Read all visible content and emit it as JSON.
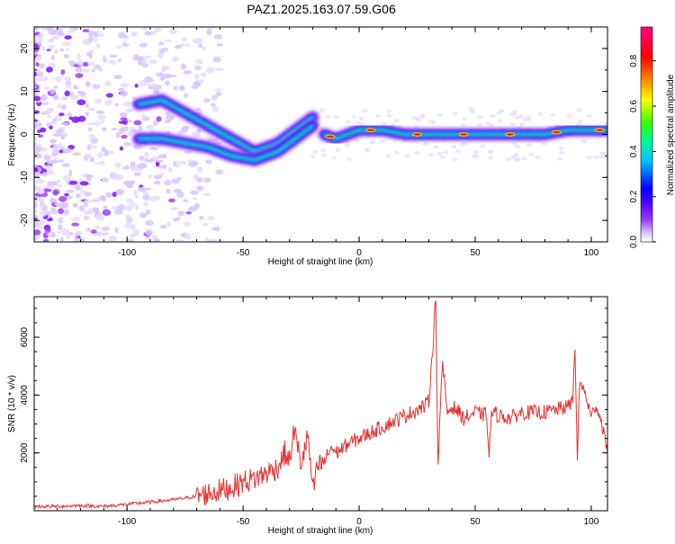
{
  "title": "PAZ1.2025.163.07.59.G06",
  "chart_data": [
    {
      "type": "heatmap",
      "xlabel": "Height of straight line (km)",
      "ylabel": "Frequency (Hz)",
      "xlim": [
        -140,
        107
      ],
      "ylim": [
        -25,
        25
      ],
      "xticks": [
        -100,
        -50,
        0,
        50,
        100
      ],
      "yticks": [
        -20,
        -10,
        0,
        10,
        20
      ],
      "colorbar": {
        "label": "Normalized spectral amplitude",
        "range": [
          0,
          0.95
        ],
        "ticks": [
          0.0,
          0.2,
          0.4,
          0.6,
          0.8
        ],
        "colors": [
          "#ffffff",
          "#e8d8ff",
          "#b070ff",
          "#7a00ff",
          "#0000ff",
          "#00c8ff",
          "#00ff80",
          "#80ff00",
          "#ffff00",
          "#ff8000",
          "#ff0000",
          "#ff0080"
        ]
      },
      "ridge": {
        "upper_branch": [
          [
            -95,
            7
          ],
          [
            -85,
            8
          ],
          [
            -75,
            5
          ],
          [
            -65,
            2
          ],
          [
            -55,
            -1
          ],
          [
            -45,
            -4
          ],
          [
            -35,
            -2
          ],
          [
            -25,
            2
          ],
          [
            -20,
            4
          ]
        ],
        "lower_branch": [
          [
            -95,
            -1
          ],
          [
            -85,
            -1
          ],
          [
            -75,
            -2
          ],
          [
            -65,
            -3
          ],
          [
            -55,
            -5
          ],
          [
            -45,
            -6
          ],
          [
            -35,
            -4
          ],
          [
            -25,
            0
          ],
          [
            -20,
            2
          ]
        ],
        "main_line": [
          [
            -15,
            0
          ],
          [
            -10,
            -1
          ],
          [
            0,
            1
          ],
          [
            10,
            1
          ],
          [
            20,
            0
          ],
          [
            30,
            0
          ],
          [
            40,
            0
          ],
          [
            50,
            0
          ],
          [
            60,
            0
          ],
          [
            70,
            0
          ],
          [
            80,
            0
          ],
          [
            90,
            1
          ],
          [
            100,
            1
          ],
          [
            107,
            1
          ]
        ]
      }
    },
    {
      "type": "line",
      "xlabel": "Height of straight line (km)",
      "ylabel": "SNR (10 * v/v)",
      "xlim": [
        -140,
        107
      ],
      "ylim": [
        0,
        7400
      ],
      "xticks": [
        -100,
        -50,
        0,
        50,
        100
      ],
      "yticks": [
        2000,
        4000,
        6000
      ],
      "line_color": "#e83030",
      "series": [
        {
          "x": [
            -140,
            -130,
            -120,
            -110,
            -100,
            -90,
            -80,
            -70,
            -60,
            -55,
            -50,
            -45,
            -40,
            -35,
            -32,
            -30,
            -28,
            -25,
            -22,
            -20,
            -18,
            -15,
            -12,
            -10,
            -5,
            0,
            5,
            10,
            15,
            20,
            25,
            28,
            30,
            32,
            33,
            34,
            35,
            36,
            38,
            40,
            42,
            45,
            48,
            50,
            55,
            56,
            57,
            60,
            65,
            70,
            75,
            80,
            85,
            90,
            92,
            93,
            94,
            95,
            98,
            100,
            102,
            105,
            107
          ],
          "y": [
            150,
            150,
            180,
            150,
            220,
            300,
            380,
            500,
            700,
            800,
            1000,
            1100,
            1300,
            1500,
            2000,
            1700,
            2800,
            1600,
            2600,
            600,
            1500,
            1700,
            2200,
            2000,
            2300,
            2500,
            2700,
            2900,
            3100,
            3300,
            3500,
            3600,
            3800,
            6000,
            7400,
            1500,
            3700,
            5000,
            3400,
            3600,
            3500,
            3200,
            3300,
            3400,
            3300,
            1800,
            3400,
            3300,
            3200,
            3400,
            3400,
            3400,
            3500,
            3600,
            3800,
            5800,
            1600,
            4500,
            3900,
            3200,
            3700,
            2900,
            2000
          ]
        }
      ]
    }
  ]
}
